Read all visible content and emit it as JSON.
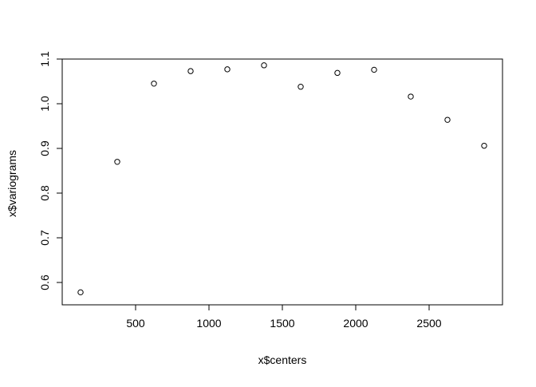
{
  "chart_data": {
    "type": "scatter",
    "title": "",
    "xlabel": "x$centers",
    "ylabel": "x$variograms",
    "xlim": [
      0,
      3000
    ],
    "ylim": [
      0.55,
      1.1
    ],
    "xticks": [
      500,
      1000,
      1500,
      2000,
      2500
    ],
    "yticks": [
      0.6,
      0.7,
      0.8,
      0.9,
      1.0,
      1.1
    ],
    "xtick_labels": [
      "500",
      "1000",
      "1500",
      "2000",
      "2500"
    ],
    "ytick_labels": [
      "0.6",
      "0.7",
      "0.8",
      "0.9",
      "1.0",
      "1.1"
    ],
    "grid": false,
    "legend": "none",
    "marker": "open-circle",
    "point_color": "#000000",
    "series": [
      {
        "x": [
          125,
          375,
          625,
          875,
          1125,
          1375,
          1625,
          1875,
          2125,
          2375,
          2625,
          2875
        ],
        "y": [
          0.578,
          0.87,
          1.045,
          1.073,
          1.077,
          1.086,
          1.038,
          1.069,
          1.076,
          1.016,
          0.964,
          0.906
        ]
      }
    ]
  }
}
